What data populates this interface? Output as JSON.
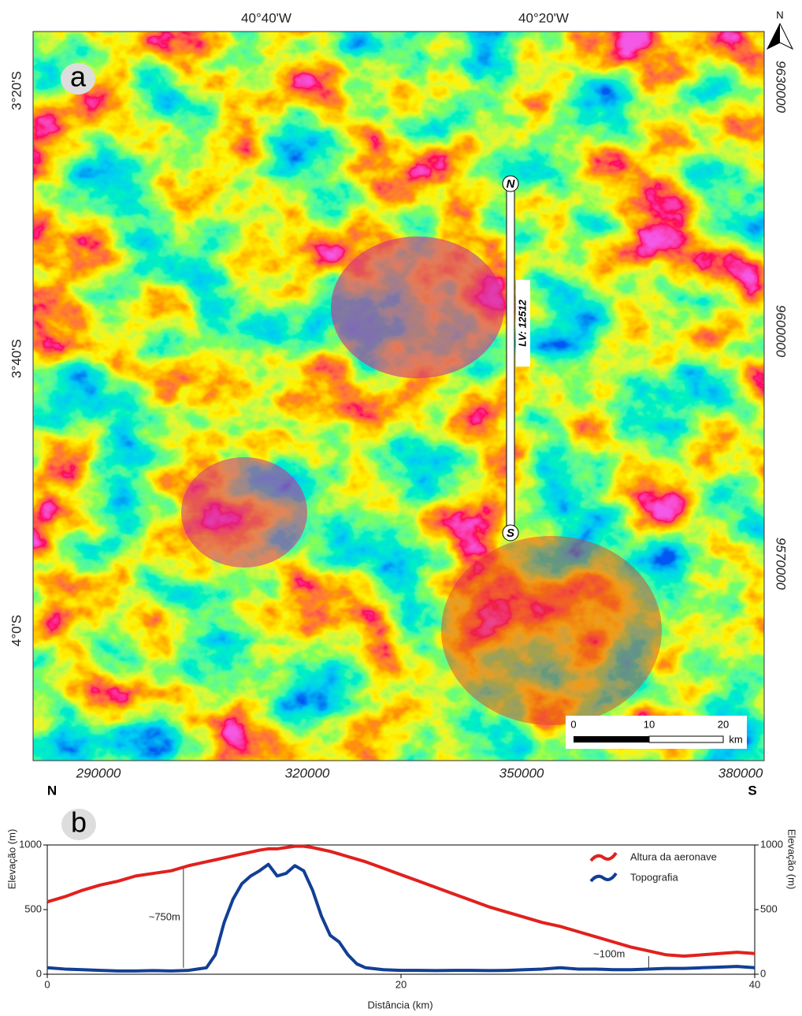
{
  "map": {
    "panel_label": "a",
    "north": "N",
    "top_labels": [
      "40°40'W",
      "40°20'W"
    ],
    "left_labels": [
      "3°20'S",
      "3°40'S",
      "4°0'S"
    ],
    "right_labels": [
      "9630000",
      "9600000",
      "9570000"
    ],
    "bottom_labels": [
      "290000",
      "320000",
      "350000",
      "380000"
    ],
    "profile": {
      "start": "N",
      "end": "S",
      "label": "LV: 12512"
    },
    "scale": {
      "ticks": [
        "0",
        "10",
        "20"
      ],
      "unit": "km"
    }
  },
  "chart_data": {
    "type": "line",
    "panel_label": "b",
    "start_label": "N",
    "end_label": "S",
    "x_label": "Distância (km)",
    "y_label": "Elevação (m)",
    "y2_label": "Elevação (m)",
    "x": [
      0,
      1,
      2,
      3,
      4,
      5,
      6,
      7,
      8,
      9,
      9.5,
      10,
      10.5,
      11,
      11.5,
      12,
      12.5,
      13,
      13.5,
      14,
      14.5,
      15,
      15.5,
      16,
      16.5,
      17,
      17.5,
      18,
      19,
      20,
      21,
      22,
      23,
      24,
      25,
      26,
      27,
      28,
      29,
      30,
      31,
      32,
      33,
      34,
      35,
      36,
      37,
      38,
      39,
      40
    ],
    "xlim": [
      0,
      40
    ],
    "xticks": [
      0,
      20,
      40
    ],
    "ylim": [
      0,
      1000
    ],
    "yticks": [
      0,
      500,
      1000
    ],
    "y2lim": [
      0,
      1000
    ],
    "y2ticks": [
      0,
      500,
      1000
    ],
    "series": [
      {
        "name": "Altura da aeronave",
        "color": "#e0211d",
        "values": [
          560,
          600,
          650,
          690,
          720,
          760,
          780,
          800,
          840,
          870,
          885,
          900,
          915,
          930,
          945,
          960,
          970,
          970,
          980,
          990,
          990,
          980,
          965,
          950,
          930,
          910,
          890,
          870,
          820,
          770,
          720,
          670,
          620,
          570,
          520,
          480,
          440,
          400,
          370,
          330,
          290,
          250,
          210,
          180,
          150,
          140,
          150,
          160,
          170,
          160
        ]
      },
      {
        "name": "Topografia",
        "color": "#123f94",
        "values": [
          50,
          40,
          35,
          30,
          25,
          25,
          28,
          25,
          30,
          50,
          150,
          400,
          580,
          700,
          760,
          800,
          850,
          760,
          780,
          840,
          800,
          650,
          450,
          300,
          250,
          150,
          80,
          50,
          35,
          30,
          30,
          28,
          30,
          30,
          28,
          30,
          35,
          40,
          50,
          40,
          40,
          35,
          35,
          40,
          45,
          45,
          50,
          55,
          60,
          50
        ]
      }
    ],
    "annotations": [
      {
        "text": "~750m",
        "x": 7.7,
        "y": [
          50,
          830
        ]
      },
      {
        "text": "~100m",
        "x": 34,
        "y": [
          40,
          140
        ]
      }
    ]
  }
}
